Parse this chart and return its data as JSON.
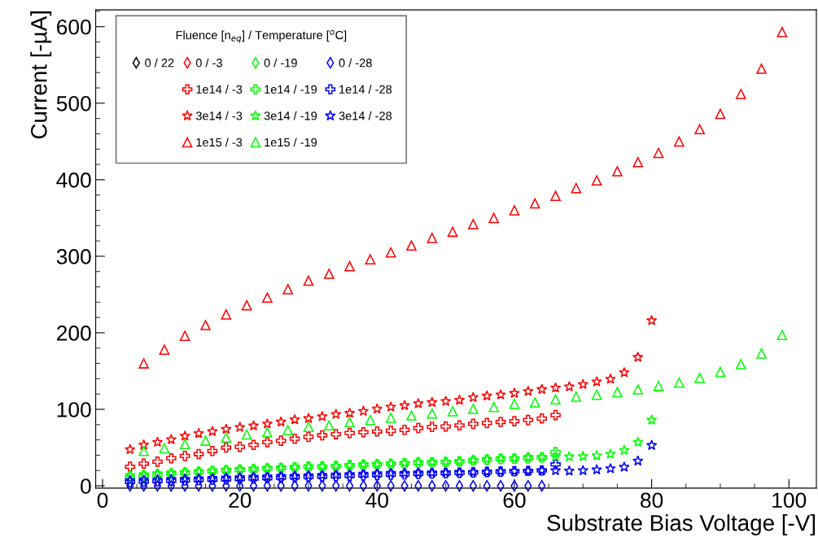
{
  "chart_data": {
    "type": "scatter",
    "xlabel": "Substrate Bias Voltage [-V]",
    "ylabel": "Current [-µA]",
    "legend_title": "Fluence [n$_{eq}$] / Temperature [$^{o}$C]",
    "xlim": [
      -1,
      104
    ],
    "xticks": [
      0,
      20,
      40,
      60,
      80,
      100
    ],
    "ylim": [
      -3,
      622
    ],
    "yticks": [
      0,
      100,
      200,
      300,
      400,
      500,
      600
    ],
    "grid": false,
    "legend": "top left",
    "series": [
      {
        "name": "0 / 22",
        "color": "#000000",
        "marker": "diamond",
        "values": [
          null,
          null,
          null,
          null,
          null,
          null,
          null,
          null,
          null,
          null,
          null,
          null,
          null,
          null,
          null,
          null,
          null,
          null,
          null,
          null,
          null,
          null,
          null,
          null,
          null,
          null,
          null,
          null,
          null,
          null,
          null
        ]
      },
      {
        "name": "0 / -3",
        "color": "#ff0000",
        "marker": "diamond",
        "values": [
          null,
          null,
          null,
          null,
          null,
          null,
          null,
          null,
          null,
          null,
          null,
          null,
          null,
          null,
          null,
          null,
          null,
          null,
          null,
          null,
          null,
          null,
          null,
          null,
          null,
          null,
          null,
          null,
          null,
          null,
          null
        ]
      },
      {
        "name": "0 / -19",
        "color": "#00ff00",
        "marker": "diamond",
        "values": [
          null,
          null,
          null,
          null,
          null,
          null,
          null,
          null,
          null,
          null,
          null,
          null,
          null,
          null,
          null,
          null,
          null,
          null,
          null,
          null,
          null,
          null,
          null,
          null,
          null,
          null,
          null,
          null,
          null,
          null,
          null
        ]
      },
      {
        "name": "0 / -28",
        "color": "#0000ff",
        "marker": "diamond",
        "x": [
          4,
          6,
          8,
          10,
          12,
          14,
          16,
          18,
          20,
          22,
          24,
          26,
          28,
          30,
          32,
          34,
          36,
          38,
          40,
          42,
          44,
          46,
          48,
          50,
          52,
          54,
          56,
          58,
          60,
          62,
          64
        ],
        "values": [
          0,
          0,
          0,
          0,
          0,
          0,
          0,
          0,
          0,
          0,
          0,
          0,
          0,
          0,
          0,
          0,
          0,
          0,
          0,
          0,
          0,
          0,
          0,
          0,
          0,
          0,
          0,
          0,
          0,
          0,
          0
        ]
      },
      {
        "name": "1e14 / -3",
        "color": "#ff0000",
        "marker": "cross",
        "x": [
          4,
          6,
          8,
          10,
          12,
          14,
          16,
          18,
          20,
          22,
          24,
          26,
          28,
          30,
          32,
          34,
          36,
          38,
          40,
          42,
          44,
          46,
          48,
          50,
          52,
          54,
          56,
          58,
          60,
          62,
          64,
          66
        ],
        "values": [
          25,
          29,
          31.5,
          36,
          39,
          41.5,
          45.5,
          50,
          51,
          53.5,
          57,
          59,
          61.5,
          64,
          66,
          67.5,
          69,
          70,
          71,
          72,
          73,
          75.5,
          77,
          77.5,
          79,
          81,
          82,
          83.5,
          84.5,
          86,
          88,
          92.5
        ]
      },
      {
        "name": "1e14 / -19",
        "color": "#00ff00",
        "marker": "cross",
        "x": [
          4,
          6,
          8,
          10,
          12,
          14,
          16,
          18,
          20,
          22,
          24,
          26,
          28,
          30,
          32,
          34,
          36,
          38,
          40,
          42,
          44,
          46,
          48,
          50,
          52,
          54,
          56,
          58,
          60,
          62,
          64,
          66
        ],
        "values": [
          11,
          13,
          14.5,
          16,
          17,
          18,
          19,
          20,
          21,
          21.5,
          22.5,
          23,
          24,
          25,
          25,
          26,
          27,
          27.5,
          28,
          28.5,
          29.5,
          30,
          30.5,
          31,
          32,
          33,
          34,
          35,
          35.5,
          36,
          37,
          44
        ]
      },
      {
        "name": "1e14 / -28",
        "color": "#0000ff",
        "marker": "cross",
        "x": [
          4,
          6,
          8,
          10,
          12,
          14,
          16,
          18,
          20,
          22,
          24,
          26,
          28,
          30,
          32,
          34,
          36,
          38,
          40,
          42,
          44,
          46,
          48,
          50,
          52,
          54,
          56,
          58,
          60,
          62,
          64,
          66
        ],
        "values": [
          5,
          5.5,
          6,
          6.5,
          7,
          7.5,
          8,
          8.5,
          9,
          9.5,
          10,
          10.5,
          11,
          11.5,
          12,
          12.5,
          13,
          13.5,
          14,
          14.5,
          15,
          15.5,
          16,
          16.5,
          17,
          17.5,
          18,
          18.5,
          19,
          19.5,
          20,
          28
        ]
      },
      {
        "name": "3e14 / -3",
        "color": "#ff0000",
        "marker": "star",
        "x": [
          4,
          6,
          8,
          10,
          12,
          14,
          16,
          18,
          20,
          22,
          24,
          26,
          28,
          30,
          32,
          34,
          36,
          38,
          40,
          42,
          44,
          46,
          48,
          50,
          52,
          54,
          56,
          58,
          60,
          62,
          64,
          66,
          68,
          70,
          72,
          74,
          76,
          78,
          80
        ],
        "values": [
          47.5,
          53.5,
          57,
          60.5,
          65,
          68.5,
          71,
          74,
          76.5,
          78.5,
          81,
          83.5,
          86.5,
          88,
          90.5,
          93.5,
          95,
          97.5,
          100.5,
          103,
          105,
          107.5,
          109,
          110.5,
          112,
          115.5,
          117.5,
          119,
          121,
          123.5,
          126,
          128,
          129.5,
          132.5,
          136,
          139.5,
          148,
          168,
          216
        ]
      },
      {
        "name": "3e14 / -19",
        "color": "#00ff00",
        "marker": "star",
        "x": [
          4,
          6,
          8,
          10,
          12,
          14,
          16,
          18,
          20,
          22,
          24,
          26,
          28,
          30,
          32,
          34,
          36,
          38,
          40,
          42,
          44,
          46,
          48,
          50,
          52,
          54,
          56,
          58,
          60,
          62,
          64,
          66,
          68,
          70,
          72,
          74,
          76,
          78,
          80
        ],
        "values": [
          14,
          15,
          16,
          17,
          18,
          19,
          20,
          21,
          22,
          22.5,
          23.5,
          24,
          24.5,
          25.5,
          25.5,
          26,
          27,
          28,
          28.5,
          29,
          29.5,
          31,
          31,
          31.5,
          32,
          34,
          35,
          36,
          36,
          37.5,
          37.5,
          38,
          38,
          38.5,
          39.5,
          41.5,
          46.5,
          57,
          86
        ]
      },
      {
        "name": "3e14 / -28",
        "color": "#0000ff",
        "marker": "star",
        "x": [
          4,
          6,
          8,
          10,
          12,
          14,
          16,
          18,
          20,
          22,
          24,
          26,
          28,
          30,
          32,
          34,
          36,
          38,
          40,
          42,
          44,
          46,
          48,
          50,
          52,
          54,
          56,
          58,
          60,
          62,
          64,
          66,
          68,
          70,
          72,
          74,
          76,
          78,
          80
        ],
        "values": [
          7,
          7.5,
          8,
          8.5,
          9,
          9.5,
          10,
          10.5,
          11,
          11.5,
          12,
          12.5,
          13,
          13.5,
          14,
          14.5,
          15,
          15.5,
          16,
          16.5,
          16.5,
          17,
          17,
          17.5,
          18,
          18,
          18.5,
          19,
          19,
          19.5,
          20,
          20,
          19.5,
          20,
          21,
          22.5,
          24.5,
          32.5,
          53
        ]
      },
      {
        "name": "1e15 / -3",
        "color": "#ff0000",
        "marker": "triangle",
        "x": [
          6,
          9,
          12,
          15,
          18,
          21,
          24,
          27,
          30,
          33,
          36,
          39,
          42,
          45,
          48,
          51,
          54,
          57,
          60,
          63,
          66,
          69,
          72,
          75,
          78,
          81,
          84,
          87,
          90,
          93,
          96,
          99
        ],
        "values": [
          160,
          178,
          196,
          210,
          224,
          236,
          246,
          257,
          268,
          277,
          287,
          296,
          305,
          314,
          324,
          332,
          342,
          350,
          360,
          369,
          379,
          389,
          399,
          411,
          423,
          435,
          450,
          466,
          486,
          512,
          545,
          593
        ]
      },
      {
        "name": "1e15 / -19",
        "color": "#00ff00",
        "marker": "triangle",
        "x": [
          6,
          9,
          12,
          15,
          18,
          21,
          24,
          27,
          30,
          33,
          36,
          39,
          42,
          45,
          48,
          51,
          54,
          57,
          60,
          63,
          66,
          69,
          72,
          75,
          78,
          81,
          84,
          87,
          90,
          93,
          96,
          99
        ],
        "values": [
          45.5,
          49,
          54.5,
          59,
          63,
          67,
          70,
          73,
          77,
          79,
          83,
          86,
          89,
          92,
          94.5,
          97.5,
          100.5,
          103,
          107,
          109,
          113,
          116.5,
          119,
          122.5,
          126,
          130.5,
          135,
          141,
          149,
          159,
          173,
          197
        ]
      }
    ]
  }
}
